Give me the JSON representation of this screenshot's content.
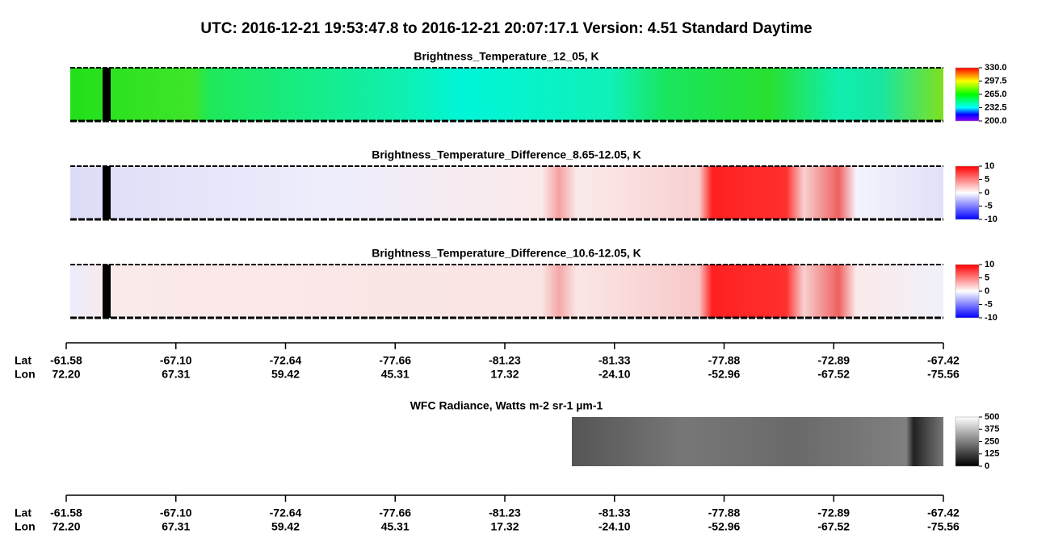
{
  "title": "UTC:  2016-12-21   19:53:47.8  to  2016-12-21   20:07:17.1    Version: 4.51  Standard Daytime",
  "panels": [
    {
      "title": "Brightness_Temperature_12_05, K",
      "colorbar_ticks": [
        "330.0",
        "297.5",
        "265.0",
        "232.5",
        "200.0"
      ]
    },
    {
      "title": "Brightness_Temperature_Difference_8.65-12.05, K",
      "colorbar_ticks": [
        "10",
        "5",
        "0",
        "-5",
        "-10"
      ]
    },
    {
      "title": "Brightness_Temperature_Difference_10.6-12.05, K",
      "colorbar_ticks": [
        "10",
        "5",
        "0",
        "-5",
        "-10"
      ]
    },
    {
      "title": "WFC Radiance, Watts m-2 sr-1 µm-1",
      "colorbar_ticks": [
        "500",
        "375",
        "250",
        "125",
        "0"
      ]
    }
  ],
  "axes": [
    {
      "row_labels": [
        "Lat",
        "Lon"
      ],
      "lat": [
        "-61.58",
        "-67.10",
        "-72.64",
        "-77.66",
        "-81.23",
        "-81.33",
        "-77.88",
        "-72.89",
        "-67.42"
      ],
      "lon": [
        "72.20",
        "67.31",
        "59.42",
        "45.31",
        "17.32",
        "-24.10",
        "-52.96",
        "-67.52",
        "-75.56"
      ]
    },
    {
      "row_labels": [
        "Lat",
        "Lon"
      ],
      "lat": [
        "-61.58",
        "-67.10",
        "-72.64",
        "-77.66",
        "-81.23",
        "-81.33",
        "-77.88",
        "-72.89",
        "-67.42"
      ],
      "lon": [
        "72.20",
        "67.31",
        "59.42",
        "45.31",
        "17.32",
        "-24.10",
        "-52.96",
        "-67.52",
        "-75.56"
      ]
    }
  ]
}
